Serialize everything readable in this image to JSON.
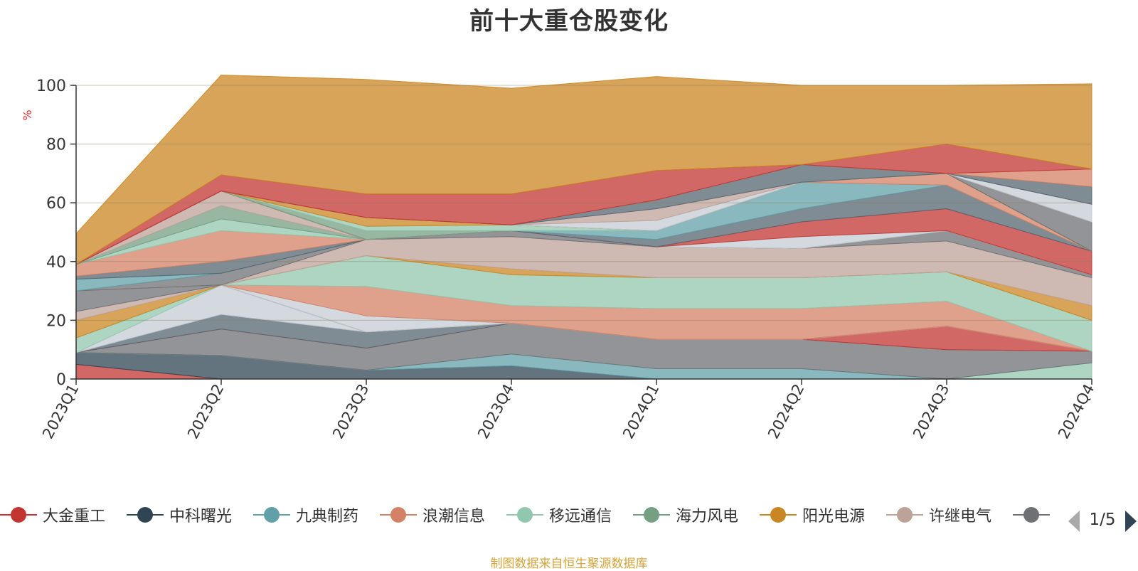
{
  "title": "前十大重仓股变化",
  "ylabel": "%",
  "source": "制图数据来自恒生聚源数据库",
  "pager": {
    "text": "1/5"
  },
  "legend": [
    {
      "name": "大金重工",
      "color": "#c23531"
    },
    {
      "name": "中科曙光",
      "color": "#2f4554"
    },
    {
      "name": "九典制药",
      "color": "#61a0a8"
    },
    {
      "name": "浪潮信息",
      "color": "#d48265"
    },
    {
      "name": "移远通信",
      "color": "#91c7ae"
    },
    {
      "name": "海力风电",
      "color": "#749f83"
    },
    {
      "name": "阳光电源",
      "color": "#ca8622"
    },
    {
      "name": "许继电气",
      "color": "#bda29a"
    },
    {
      "name": "",
      "color": "#6e7074"
    }
  ],
  "chart_data": {
    "type": "area",
    "stacked": true,
    "categories": [
      "2023Q1",
      "2023Q2",
      "2023Q3",
      "2023Q4",
      "2024Q1",
      "2024Q2",
      "2024Q3",
      "2024Q4"
    ],
    "ylabel": "%",
    "ylim": [
      0,
      100
    ],
    "yticks": [
      0,
      20,
      40,
      60,
      80,
      100
    ],
    "grid": true,
    "series": [
      {
        "color": "#c23531",
        "values": [
          5,
          0,
          0,
          0,
          0,
          0,
          0,
          0
        ]
      },
      {
        "color": "#2f4554",
        "values": [
          4,
          8,
          3,
          4.5,
          0,
          0,
          0,
          0
        ]
      },
      {
        "color": "#61a0a8",
        "values": [
          0,
          0,
          0,
          4,
          3.5,
          3.5,
          0,
          0
        ]
      },
      {
        "color": "#91c7ae",
        "values": [
          0,
          0,
          0,
          0,
          0,
          0,
          0,
          5.5
        ]
      },
      {
        "color": "#6e7074",
        "values": [
          0,
          9,
          7.5,
          10.5,
          10,
          10,
          10,
          4
        ]
      },
      {
        "color": "#c23531",
        "values": [
          0,
          0,
          0,
          0,
          0,
          0,
          8,
          0
        ]
      },
      {
        "color": "#d48265",
        "values": [
          0,
          0,
          0,
          0,
          0,
          0,
          0,
          0
        ]
      },
      {
        "color": "#546570",
        "values": [
          0,
          5,
          5.5,
          0,
          0,
          0,
          0,
          0
        ]
      },
      {
        "color": "#c4ccd3",
        "values": [
          0,
          10,
          0,
          0,
          0,
          0,
          0,
          0
        ]
      },
      {
        "color": "#91c7ae",
        "values": [
          5,
          0,
          0,
          0,
          0,
          0,
          0,
          0
        ]
      },
      {
        "color": "#ca8622",
        "values": [
          6,
          0,
          0,
          0,
          0,
          0,
          0,
          0
        ]
      },
      {
        "color": "#bda29a",
        "values": [
          3,
          0,
          0,
          0,
          0,
          0,
          0,
          0
        ]
      },
      {
        "color": "#6e7074",
        "values": [
          7,
          0,
          0,
          0,
          0,
          0,
          0,
          0
        ]
      },
      {
        "color": "#c4ccd3",
        "values": [
          0,
          0,
          5.5,
          0,
          0,
          0,
          0,
          0
        ]
      },
      {
        "color": "#d48265",
        "values": [
          0,
          0,
          10,
          6,
          10.5,
          10.5,
          8.5,
          0
        ]
      },
      {
        "color": "#91c7ae",
        "values": [
          0,
          0,
          10.5,
          10.5,
          10.5,
          10.5,
          10,
          10.5
        ]
      },
      {
        "color": "#ca8622",
        "values": [
          0,
          0,
          0,
          2,
          0,
          0,
          0,
          5
        ]
      },
      {
        "color": "#bda29a",
        "values": [
          0,
          0,
          5.5,
          11,
          10.5,
          10,
          10.5,
          9.5
        ]
      },
      {
        "color": "#6e7074",
        "values": [
          0,
          4,
          0,
          2,
          0,
          0,
          3.5,
          1
        ]
      },
      {
        "color": "#61a0a8",
        "values": [
          4,
          0,
          0,
          0,
          0,
          0,
          0,
          0
        ]
      },
      {
        "color": "#546570",
        "values": [
          1,
          4,
          0,
          0,
          0,
          0,
          0,
          0
        ]
      },
      {
        "color": "#d48265",
        "values": [
          4,
          10.5,
          0,
          0,
          0,
          0,
          0,
          0
        ]
      },
      {
        "color": "#91c7ae",
        "values": [
          0,
          4,
          0,
          0,
          0,
          0,
          0,
          0
        ]
      },
      {
        "color": "#749f83",
        "values": [
          0,
          4.5,
          0,
          0,
          0,
          0,
          0,
          0
        ]
      },
      {
        "color": "#bda29a",
        "values": [
          0,
          5,
          0,
          0,
          0,
          0,
          0,
          0
        ]
      },
      {
        "color": "#c4ccd3",
        "values": [
          0,
          0,
          0,
          0,
          0,
          4,
          0,
          0
        ]
      },
      {
        "color": "#c23531",
        "values": [
          0,
          0,
          0,
          0,
          0,
          5,
          7.5,
          8
        ]
      },
      {
        "color": "#546570",
        "values": [
          0,
          0,
          0,
          0,
          2.5,
          4.5,
          8,
          0
        ]
      },
      {
        "color": "#61a0a8",
        "values": [
          0,
          0,
          0,
          0,
          3,
          9,
          0,
          0
        ]
      },
      {
        "color": "#d48265",
        "values": [
          0,
          0,
          0,
          0,
          0,
          0,
          4,
          0
        ]
      },
      {
        "color": "#749f83",
        "values": [
          0,
          0,
          3,
          0,
          0,
          0,
          0,
          0
        ]
      },
      {
        "color": "#91c7ae",
        "values": [
          0,
          0,
          1.5,
          2,
          0,
          0,
          0,
          0
        ]
      },
      {
        "color": "#ca8622",
        "values": [
          0,
          0,
          3,
          0,
          0,
          0,
          0,
          0
        ]
      },
      {
        "color": "#6e7074",
        "values": [
          0,
          0,
          0,
          0,
          0,
          0,
          0,
          10
        ]
      },
      {
        "color": "#c4ccd3",
        "values": [
          0,
          0,
          0,
          0,
          3.5,
          0,
          0,
          6
        ]
      },
      {
        "color": "#bda29a",
        "values": [
          0,
          0,
          0,
          0,
          4,
          0,
          0,
          0
        ]
      },
      {
        "color": "#546570",
        "values": [
          0,
          0,
          0,
          0,
          3,
          6,
          0,
          6
        ]
      },
      {
        "color": "#d48265",
        "values": [
          0,
          0,
          0,
          0,
          0,
          0,
          0,
          6
        ]
      },
      {
        "color": "#c23531",
        "values": [
          0,
          5.5,
          8,
          10.5,
          10,
          0,
          10,
          0
        ]
      },
      {
        "color": "#ca8622",
        "values": [
          10.5,
          34,
          39,
          36,
          32,
          27,
          20,
          29
        ]
      }
    ]
  }
}
